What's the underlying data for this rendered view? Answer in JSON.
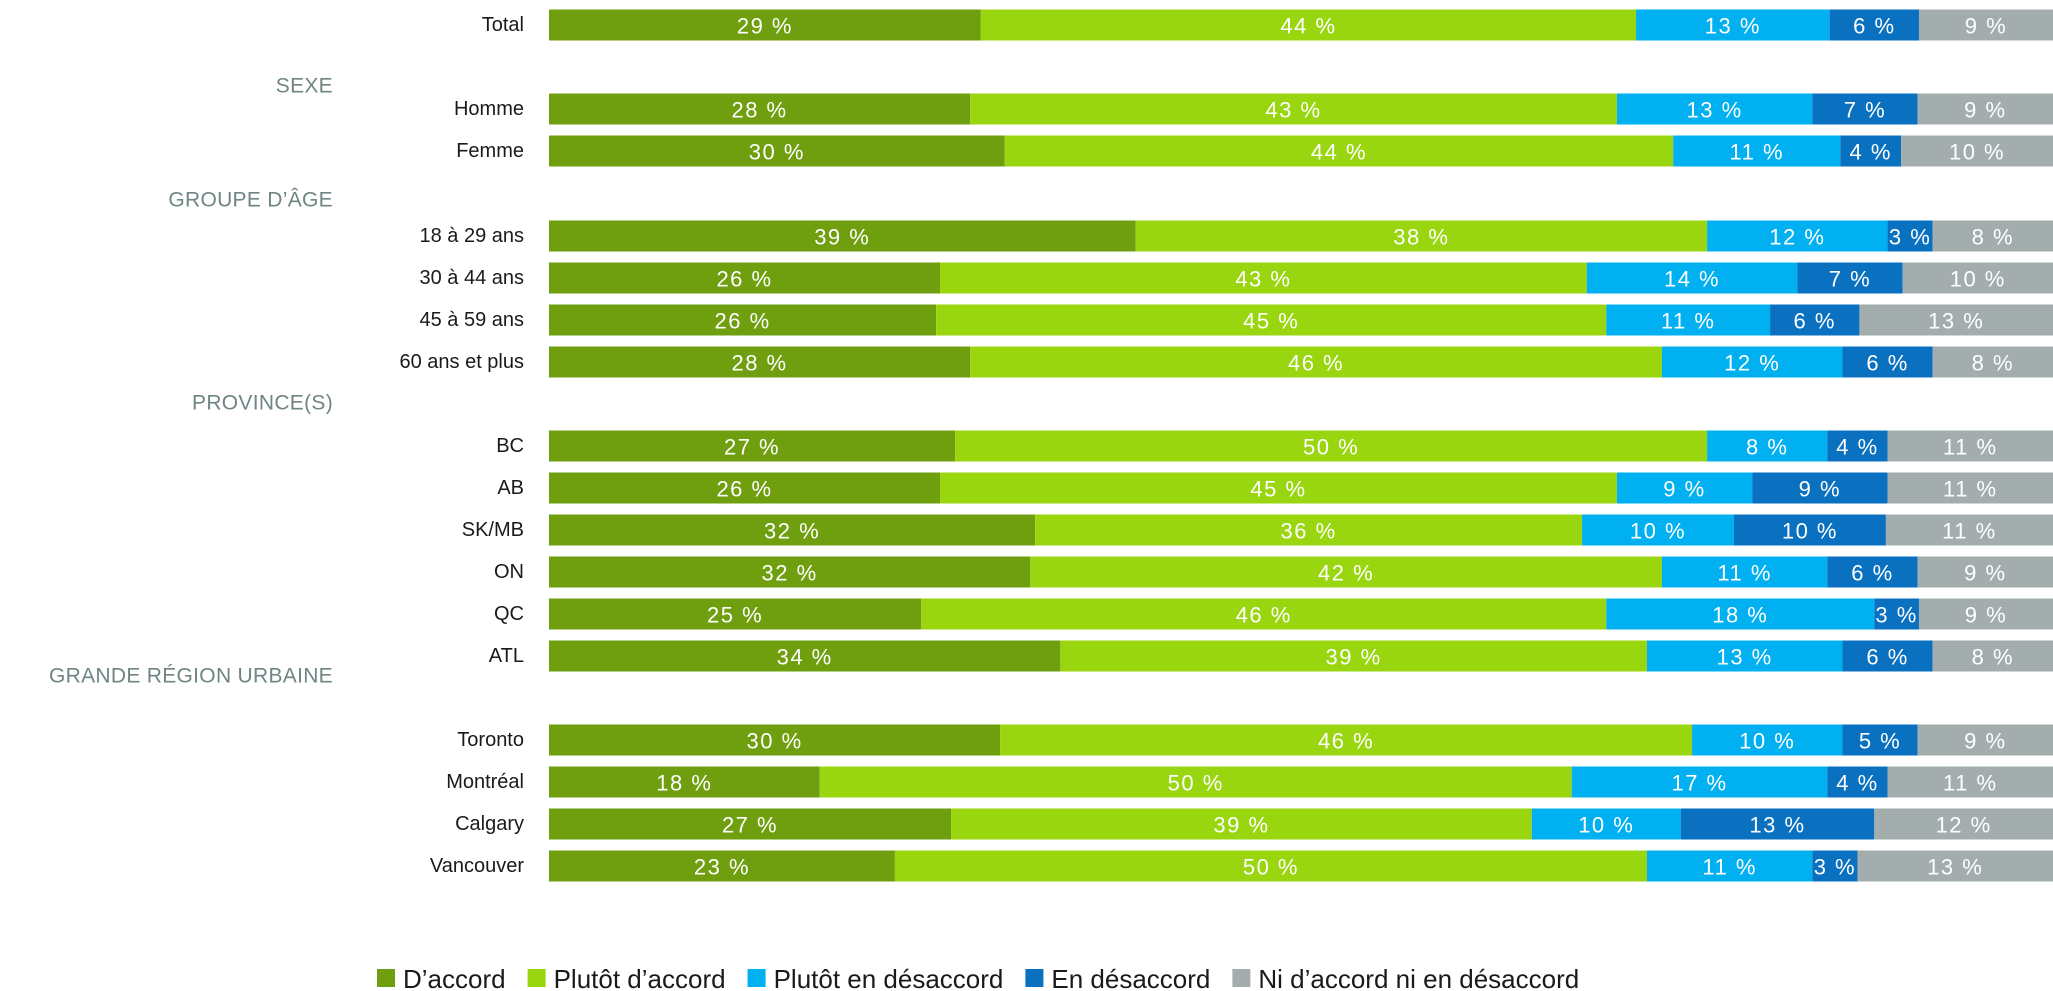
{
  "chart_data": {
    "type": "bar",
    "orientation": "horizontal",
    "stacked": "percent",
    "xlim": [
      0,
      100
    ],
    "grid": false,
    "legend_position": "bottom",
    "segment_label_suffix": " %",
    "series": [
      {
        "name": "D’accord",
        "color": "#6f9e0f"
      },
      {
        "name": "Plutôt d’accord",
        "color": "#99d60f"
      },
      {
        "name": "Plutôt en désaccord",
        "color": "#00b0f0"
      },
      {
        "name": "En désaccord",
        "color": "#0a70c0"
      },
      {
        "name": "Ni d’accord ni en désaccord",
        "color": "#a3adad"
      }
    ],
    "rows": [
      {
        "label": "Total",
        "values": [
          29,
          44,
          13,
          6,
          9
        ]
      },
      {
        "group": "SEXE"
      },
      {
        "label": "Homme",
        "values": [
          28,
          43,
          13,
          7,
          9
        ]
      },
      {
        "label": "Femme",
        "values": [
          30,
          44,
          11,
          4,
          10
        ]
      },
      {
        "group": "GROUPE D’ÂGE"
      },
      {
        "label": "18 à 29 ans",
        "values": [
          39,
          38,
          12,
          3,
          8
        ]
      },
      {
        "label": "30 à 44 ans",
        "values": [
          26,
          43,
          14,
          7,
          10
        ]
      },
      {
        "label": "45 à 59 ans",
        "values": [
          26,
          45,
          11,
          6,
          13
        ]
      },
      {
        "label": "60 ans et plus",
        "values": [
          28,
          46,
          12,
          6,
          8
        ]
      },
      {
        "group": "PROVINCE(S)"
      },
      {
        "label": "BC",
        "values": [
          27,
          50,
          8,
          4,
          11
        ]
      },
      {
        "label": "AB",
        "values": [
          26,
          45,
          9,
          9,
          11
        ]
      },
      {
        "label": "SK/MB",
        "values": [
          32,
          36,
          10,
          10,
          11
        ]
      },
      {
        "label": "ON",
        "values": [
          32,
          42,
          11,
          6,
          9
        ]
      },
      {
        "label": "QC",
        "values": [
          25,
          46,
          18,
          3,
          9
        ]
      },
      {
        "label": "ATL",
        "values": [
          34,
          39,
          13,
          6,
          8
        ]
      },
      {
        "group": "GRANDE RÉGION URBAINE"
      },
      {
        "label": "Toronto",
        "values": [
          30,
          46,
          10,
          5,
          9
        ]
      },
      {
        "label": "Montréal",
        "values": [
          18,
          50,
          17,
          4,
          11
        ]
      },
      {
        "label": "Calgary",
        "values": [
          27,
          39,
          10,
          13,
          12
        ]
      },
      {
        "label": "Vancouver",
        "values": [
          23,
          50,
          11,
          3,
          13
        ]
      }
    ]
  }
}
